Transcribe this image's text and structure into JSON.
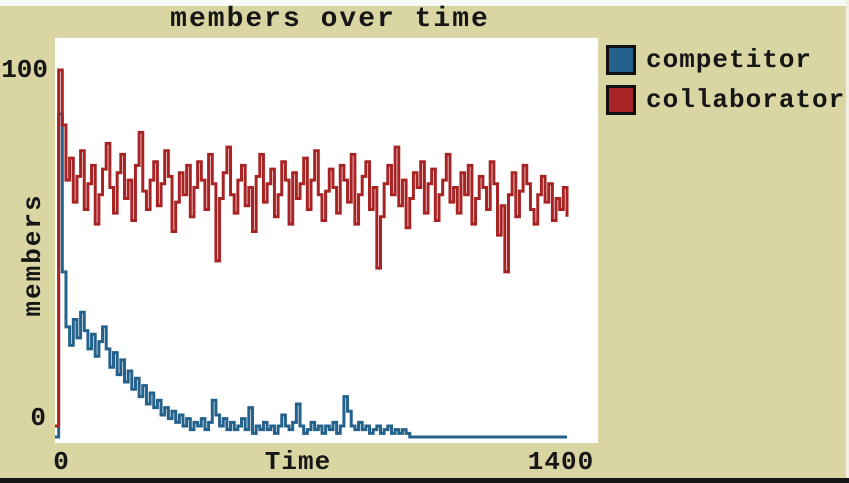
{
  "title": "members over time",
  "colors": {
    "background": "#d9d6a4",
    "plot_background": "#ffffff",
    "competitor": "#24628c",
    "collaborator": "#a82424",
    "text": "#161616"
  },
  "axes": {
    "x_label": "Time",
    "y_label": "members",
    "x_tick_min": "0",
    "x_tick_max": "1400",
    "y_tick_min": "0",
    "y_tick_max": "100"
  },
  "legend": {
    "items": [
      {
        "label": "competitor",
        "color": "#24628c"
      },
      {
        "label": "collaborator",
        "color": "#a82424"
      }
    ]
  },
  "chart_data": {
    "type": "line",
    "style": "step",
    "title": "members over time",
    "xlabel": "Time",
    "ylabel": "members",
    "xlim": [
      0,
      1400
    ],
    "ylim": [
      0,
      100
    ],
    "grid": false,
    "legend_position": "top-right",
    "x_start": 0,
    "x_step": 10,
    "series": [
      {
        "name": "competitor",
        "color": "#24628c",
        "values": [
          0,
          88,
          45,
          30,
          25,
          32,
          27,
          34,
          29,
          24,
          28,
          22,
          26,
          30,
          24,
          19,
          23,
          17,
          21,
          15,
          18,
          13,
          16,
          11,
          14,
          9,
          12,
          8,
          10,
          6,
          8,
          5,
          7,
          4,
          6,
          3,
          5,
          2,
          4,
          3,
          5,
          2,
          4,
          10,
          6,
          3,
          5,
          2,
          4,
          2,
          3,
          5,
          2,
          8,
          1,
          3,
          2,
          4,
          2,
          3,
          1,
          3,
          6,
          3,
          2,
          4,
          9,
          3,
          1,
          2,
          4,
          2,
          3,
          1,
          3,
          2,
          4,
          1,
          3,
          11,
          7,
          3,
          2,
          4,
          2,
          3,
          1,
          2,
          3,
          1,
          2,
          3,
          1,
          2,
          1,
          2,
          1,
          0,
          0,
          0,
          0,
          0,
          0,
          0,
          0,
          0,
          0,
          0,
          0,
          0,
          0,
          0,
          0,
          0,
          0,
          0,
          0,
          0,
          0,
          0,
          0,
          0,
          0,
          0,
          0,
          0,
          0,
          0,
          0,
          0,
          0,
          0,
          0,
          0,
          0,
          0,
          0,
          0,
          0,
          0,
          0
        ]
      },
      {
        "name": "collaborator",
        "color": "#a82424",
        "values": [
          3,
          100,
          85,
          70,
          76,
          64,
          71,
          78,
          62,
          69,
          74,
          58,
          66,
          73,
          80,
          68,
          61,
          72,
          77,
          65,
          70,
          59,
          74,
          83,
          67,
          62,
          70,
          75,
          63,
          69,
          78,
          71,
          56,
          64,
          72,
          66,
          74,
          60,
          68,
          75,
          70,
          62,
          77,
          69,
          48,
          65,
          72,
          79,
          66,
          61,
          70,
          74,
          63,
          68,
          56,
          71,
          77,
          64,
          69,
          73,
          60,
          66,
          75,
          70,
          58,
          72,
          65,
          69,
          76,
          62,
          70,
          78,
          66,
          59,
          67,
          73,
          68,
          61,
          74,
          70,
          64,
          77,
          58,
          66,
          71,
          75,
          62,
          68,
          46,
          60,
          69,
          74,
          66,
          79,
          63,
          70,
          57,
          65,
          72,
          68,
          75,
          61,
          69,
          73,
          59,
          66,
          70,
          77,
          64,
          68,
          61,
          72,
          66,
          74,
          58,
          65,
          71,
          68,
          62,
          75,
          69,
          55,
          63,
          45,
          66,
          72,
          60,
          67,
          74,
          69,
          62,
          58,
          66,
          71,
          64,
          69,
          59,
          65,
          62,
          68,
          60
        ]
      }
    ]
  }
}
